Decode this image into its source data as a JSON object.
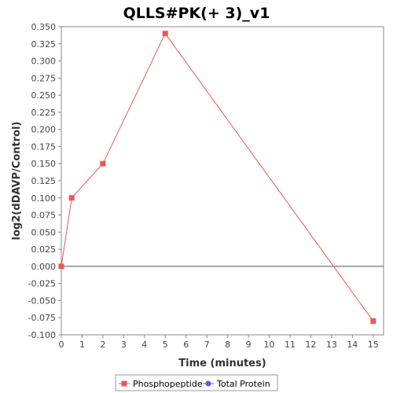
{
  "chart_data": {
    "type": "line",
    "title": "QLLS#PK(+ 3)_v1",
    "xlabel": "Time (minutes)",
    "ylabel": "log2(dDAVP/Control)",
    "xlim": [
      0,
      15.5
    ],
    "ylim": [
      -0.1,
      0.35
    ],
    "x_ticks": [
      0,
      1,
      2,
      3,
      4,
      5,
      6,
      7,
      8,
      9,
      10,
      11,
      12,
      13,
      14,
      15
    ],
    "y_ticks": [
      -0.1,
      -0.075,
      -0.05,
      -0.025,
      0,
      0.025,
      0.05,
      0.075,
      0.1,
      0.125,
      0.15,
      0.175,
      0.2,
      0.225,
      0.25,
      0.275,
      0.3,
      0.325,
      0.35
    ],
    "grid": false,
    "legend_position": "bottom",
    "series": [
      {
        "name": "Phosphopeptide",
        "color": "#e8585a",
        "marker": "square",
        "x": [
          0,
          0.5,
          2,
          5,
          15
        ],
        "y": [
          0.0,
          0.1,
          0.15,
          0.34,
          -0.08
        ]
      },
      {
        "name": "Total Protein",
        "color": "#5b5bf0",
        "marker": "circle",
        "x": [],
        "y": []
      }
    ]
  }
}
